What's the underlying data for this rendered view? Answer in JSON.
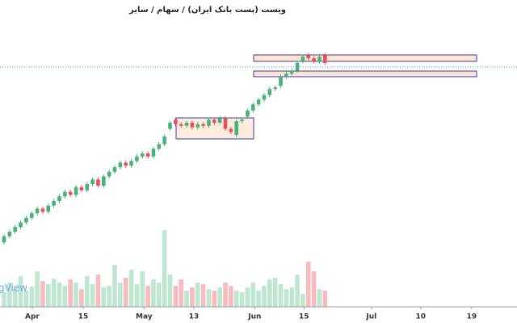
{
  "chart_data": {
    "type": "candlestick",
    "title": "ویست (پست بانک ایران)  /  سهام  /  سایر",
    "watermark": "gView",
    "up_color": "#4cb07a",
    "down_color": "#e8505b",
    "up_volume_color": "#bfe6d0",
    "down_volume_color": "#f6bcc0",
    "open": [
      21,
      23,
      24.5,
      26,
      27.5,
      29,
      30.5,
      32,
      31,
      33,
      34.5,
      36,
      37.5,
      36.5,
      39,
      38,
      40,
      41.5,
      39.5,
      42.5,
      44,
      45.5,
      47,
      46,
      47.5,
      49,
      50,
      49,
      51.5,
      53,
      58,
      61,
      59.5,
      59,
      60,
      58.5,
      59.5,
      59,
      61,
      60,
      61.5,
      58,
      56,
      60.5,
      62,
      64,
      66,
      67.5,
      69,
      71,
      72,
      75,
      76,
      77,
      80,
      82,
      81,
      80,
      82
    ],
    "high": [
      23.7,
      25.2,
      26.7,
      28.2,
      29.7,
      31.2,
      32.7,
      32.7,
      33.7,
      35.2,
      36.7,
      38.2,
      38.2,
      39.7,
      39.7,
      40.7,
      42.2,
      42.2,
      43.2,
      44.7,
      46.2,
      47.7,
      47.7,
      48.2,
      49.7,
      50.7,
      50.7,
      52.2,
      53.7,
      56.2,
      60.7,
      61.7,
      60.2,
      60.7,
      60.7,
      60.2,
      60.2,
      61.7,
      61.7,
      62.2,
      62.2,
      58.7,
      61.2,
      61.7,
      64.7,
      66.7,
      68.2,
      69.7,
      71.7,
      72.2,
      75.7,
      76.7,
      77.7,
      80.2,
      82.2,
      82.7,
      81.7,
      82.2,
      82.7
    ],
    "low": [
      20.3,
      22.3,
      23.8,
      25.3,
      26.8,
      28.3,
      29.8,
      30.3,
      30.3,
      32.3,
      33.8,
      35.3,
      35.8,
      35.8,
      37.3,
      37.3,
      39.3,
      38.8,
      38.8,
      41.8,
      43.3,
      44.8,
      45.3,
      45.3,
      46.8,
      48.3,
      48.3,
      48.3,
      50.8,
      52.3,
      57.3,
      58.8,
      58.3,
      58.3,
      57.8,
      57.8,
      58.3,
      58.3,
      59.3,
      59.3,
      57.3,
      56.3,
      55.3,
      59.8,
      61.3,
      63.3,
      65.3,
      66.8,
      68.3,
      70.3,
      71.3,
      74.3,
      75.3,
      76.3,
      79.3,
      80.3,
      79.3,
      79.3,
      78.8
    ],
    "close": [
      23,
      24.5,
      26,
      27.5,
      29,
      30.5,
      32,
      31,
      33,
      34.5,
      36,
      37.5,
      36.5,
      39,
      38,
      40,
      41.5,
      39.5,
      42.5,
      44,
      45.5,
      47,
      46,
      47.5,
      49,
      50,
      49,
      51.5,
      53,
      55.5,
      60,
      59.5,
      59,
      60,
      58.5,
      59.5,
      59,
      61,
      60,
      61.5,
      58,
      57,
      60.5,
      61,
      64,
      66,
      67.5,
      69,
      71,
      71.5,
      75,
      76,
      77,
      79.5,
      81.5,
      81,
      80,
      81.5,
      79.5
    ],
    "volumes": [
      18,
      30,
      22,
      38,
      20,
      25,
      44,
      32,
      28,
      35,
      30,
      26,
      34,
      30,
      22,
      38,
      28,
      40,
      24,
      26,
      52,
      30,
      36,
      46,
      28,
      44,
      26,
      34,
      30,
      95,
      40,
      26,
      34,
      20,
      24,
      30,
      28,
      22,
      20,
      24,
      30,
      26,
      20,
      18,
      24,
      30,
      20,
      26,
      34,
      36,
      28,
      22,
      24,
      40,
      16,
      56,
      44,
      22,
      20
    ],
    "xlim": [
      -0.73,
      92.7
    ],
    "ylim": [
      0,
      100
    ],
    "vlim": [
      0,
      380
    ],
    "price_line": 78.2,
    "xticks": [
      {
        "value": 5.1,
        "label": "Apr"
      },
      {
        "value": 14.3,
        "label": "15"
      },
      {
        "value": 25.3,
        "label": "May"
      },
      {
        "value": 34.3,
        "label": "13"
      },
      {
        "value": 45.3,
        "label": "Jun"
      },
      {
        "value": 54.2,
        "label": "15"
      },
      {
        "value": 66.4,
        "label": "Jul"
      },
      {
        "value": 75.3,
        "label": "10"
      },
      {
        "value": 84.5,
        "label": "19"
      }
    ]
  }
}
